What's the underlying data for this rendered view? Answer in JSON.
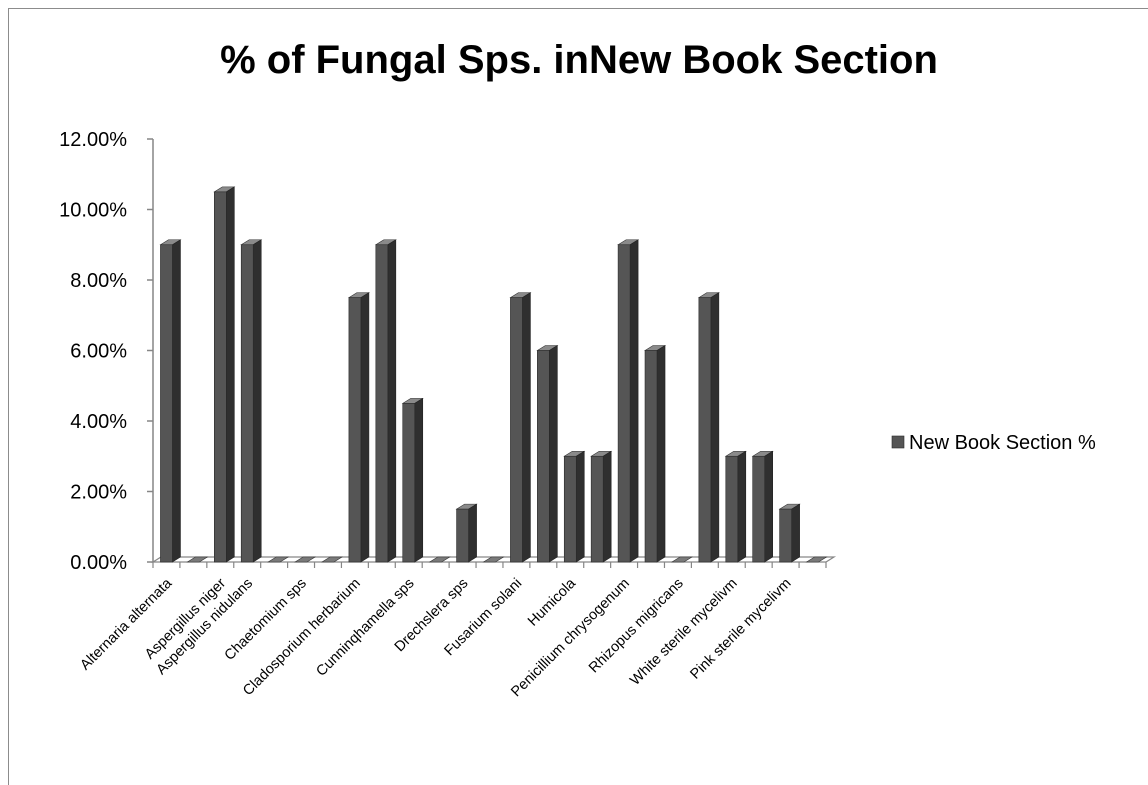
{
  "chart_data": {
    "type": "bar",
    "title": "% of Fungal Sps. inNew Book Section",
    "xlabel": "",
    "ylabel": "",
    "ylim": [
      0,
      0.12
    ],
    "y_ticks": [
      "0.00%",
      "2.00%",
      "4.00%",
      "6.00%",
      "8.00%",
      "10.00%",
      "12.00%"
    ],
    "grid": false,
    "legend": {
      "position": "right",
      "entries": [
        "New Book Section  %"
      ]
    },
    "bar_color": "#555555",
    "categories": [
      "Alternaria alternata",
      "",
      "Aspergillus niger",
      "Aspergillus nidulans",
      "",
      "Chaetomium sps",
      "",
      "Cladosporium herbarium",
      "",
      "Cunninqhamella sps",
      "",
      "Drechslera sps",
      "",
      "Fusarium solani",
      "",
      "Humicola",
      "",
      "Penicillium chrysogenum",
      "",
      "Rhizopus migricans",
      "",
      "White sterile mycelivm",
      "",
      "Pink sterile mycelivm",
      ""
    ],
    "series": [
      {
        "name": "New Book Section  %",
        "values": [
          0.09,
          0,
          0.105,
          0.09,
          0,
          0,
          0,
          0.075,
          0.09,
          0.045,
          0,
          0.015,
          0,
          0.075,
          0.06,
          0.03,
          0.03,
          0.09,
          0.06,
          0,
          0.075,
          0.03,
          0.03,
          0.015,
          0
        ]
      }
    ]
  }
}
